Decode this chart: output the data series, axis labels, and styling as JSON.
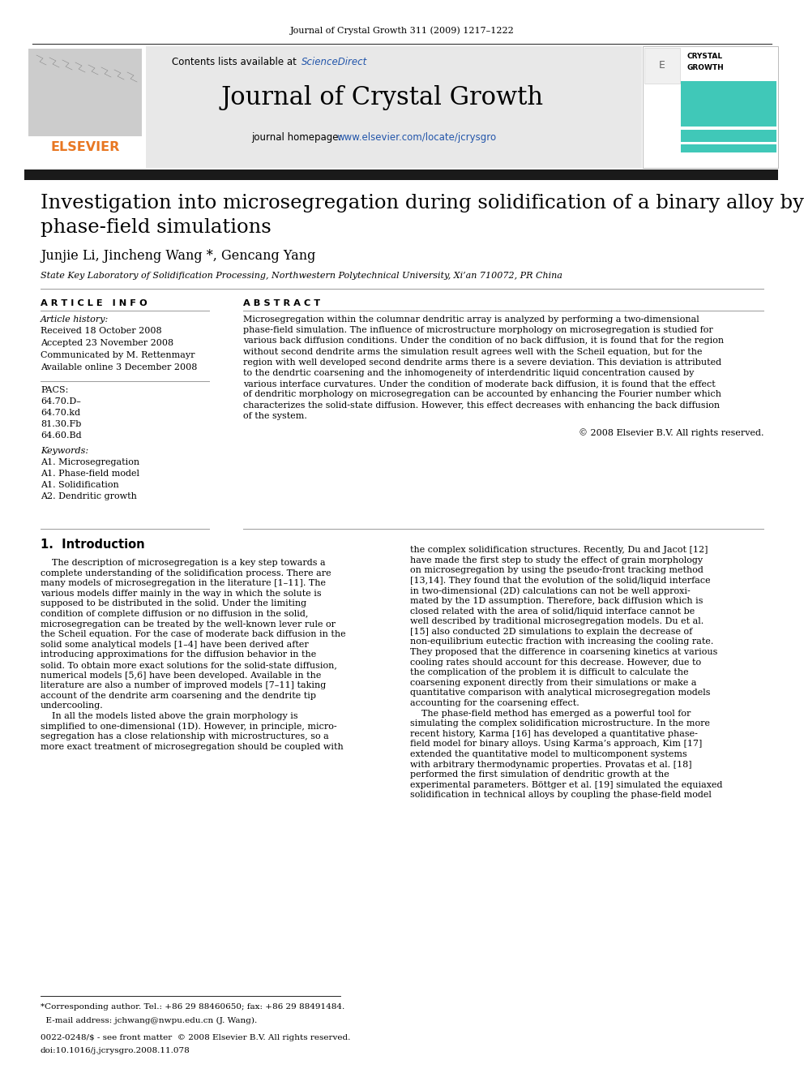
{
  "journal_citation": "Journal of Crystal Growth 311 (2009) 1217–1222",
  "journal_name": "Journal of Crystal Growth",
  "contents_pre": "Contents lists available at ",
  "sciencedirect": "ScienceDirect",
  "homepage_label": "journal homepage: ",
  "homepage_url": "www.elsevier.com/locate/jcrysgro",
  "paper_title_line1": "Investigation into microsegregation during solidification of a binary alloy by",
  "paper_title_line2": "phase-field simulations",
  "authors": "Junjie Li, Jincheng Wang *, Gencang Yang",
  "affiliation": "State Key Laboratory of Solidification Processing, Northwestern Polytechnical University, Xi’an 710072, PR China",
  "article_info_header": "A R T I C L E   I N F O",
  "abstract_header": "A B S T R A C T",
  "article_history_label": "Article history:",
  "received": "Received 18 October 2008",
  "accepted": "Accepted 23 November 2008",
  "communicated": "Communicated by M. Rettenmayr",
  "available": "Available online 3 December 2008",
  "pacs_label": "PACS:",
  "pacs_codes": [
    "64.70.D–",
    "64.70.kd",
    "81.30.Fb",
    "64.60.Bd"
  ],
  "keywords_label": "Keywords:",
  "keywords": [
    "A1. Microsegregation",
    "A1. Phase-field model",
    "A1. Solidification",
    "A2. Dendritic growth"
  ],
  "abstract_lines": [
    "Microsegregation within the columnar dendritic array is analyzed by performing a two-dimensional",
    "phase-field simulation. The influence of microstructure morphology on microsegregation is studied for",
    "various back diffusion conditions. Under the condition of no back diffusion, it is found that for the region",
    "without second dendrite arms the simulation result agrees well with the Scheil equation, but for the",
    "region with well developed second dendrite arms there is a severe deviation. This deviation is attributed",
    "to the dendrtic coarsening and the inhomogeneity of interdendritic liquid concentration caused by",
    "various interface curvatures. Under the condition of moderate back diffusion, it is found that the effect",
    "of dendritic morphology on microsegregation can be accounted by enhancing the Fourier number which",
    "characterizes the solid-state diffusion. However, this effect decreases with enhancing the back diffusion",
    "of the system."
  ],
  "copyright": "© 2008 Elsevier B.V. All rights reserved.",
  "intro_heading": "1.  Introduction",
  "intro_col1_lines": [
    "    The description of microsegregation is a key step towards a",
    "complete understanding of the solidification process. There are",
    "many models of microsegregation in the literature [1–11]. The",
    "various models differ mainly in the way in which the solute is",
    "supposed to be distributed in the solid. Under the limiting",
    "condition of complete diffusion or no diffusion in the solid,",
    "microsegregation can be treated by the well-known lever rule or",
    "the Scheil equation. For the case of moderate back diffusion in the",
    "solid some analytical models [1–4] have been derived after",
    "introducing approximations for the diffusion behavior in the",
    "solid. To obtain more exact solutions for the solid-state diffusion,",
    "numerical models [5,6] have been developed. Available in the",
    "literature are also a number of improved models [7–11] taking",
    "account of the dendrite arm coarsening and the dendrite tip",
    "undercooling.",
    "    In all the models listed above the grain morphology is",
    "simplified to one-dimensional (1D). However, in principle, micro-",
    "segregation has a close relationship with microstructures, so a",
    "more exact treatment of microsegregation should be coupled with"
  ],
  "intro_col2_lines": [
    "the complex solidification structures. Recently, Du and Jacot [12]",
    "have made the first step to study the effect of grain morphology",
    "on microsegregation by using the pseudo-front tracking method",
    "[13,14]. They found that the evolution of the solid/liquid interface",
    "in two-dimensional (2D) calculations can not be well approxi-",
    "mated by the 1D assumption. Therefore, back diffusion which is",
    "closed related with the area of solid/liquid interface cannot be",
    "well described by traditional microsegregation models. Du et al.",
    "[15] also conducted 2D simulations to explain the decrease of",
    "non-equilibrium eutectic fraction with increasing the cooling rate.",
    "They proposed that the difference in coarsening kinetics at various",
    "cooling rates should account for this decrease. However, due to",
    "the complication of the problem it is difficult to calculate the",
    "coarsening exponent directly from their simulations or make a",
    "quantitative comparison with analytical microsegregation models",
    "accounting for the coarsening effect.",
    "    The phase-field method has emerged as a powerful tool for",
    "simulating the complex solidification microstructure. In the more",
    "recent history, Karma [16] has developed a quantitative phase-",
    "field model for binary alloys. Using Karma’s approach, Kim [17]",
    "extended the quantitative model to multicomponent systems",
    "with arbitrary thermodynamic properties. Provatas et al. [18]",
    "performed the first simulation of dendritic growth at the",
    "experimental parameters. Böttger et al. [19] simulated the equiaxed",
    "solidification in technical alloys by coupling the phase-field model"
  ],
  "footnote_star": "*Corresponding author. Tel.: +86 29 88460650; fax: +86 29 88491484.",
  "footnote_email": "E-mail address: jchwang@nwpu.edu.cn (J. Wang).",
  "footnote_issn": "0022-0248/$ - see front matter  © 2008 Elsevier B.V. All rights reserved.",
  "footnote_doi": "doi:10.1016/j.jcrysgro.2008.11.078",
  "bg_color": "#ffffff",
  "header_bg": "#e8e8e8",
  "black_bar": "#1a1a1a",
  "orange": "#e87722",
  "link_blue": "#2255aa",
  "teal": "#40c8b8",
  "text_black": "#000000",
  "gray_line": "#999999"
}
